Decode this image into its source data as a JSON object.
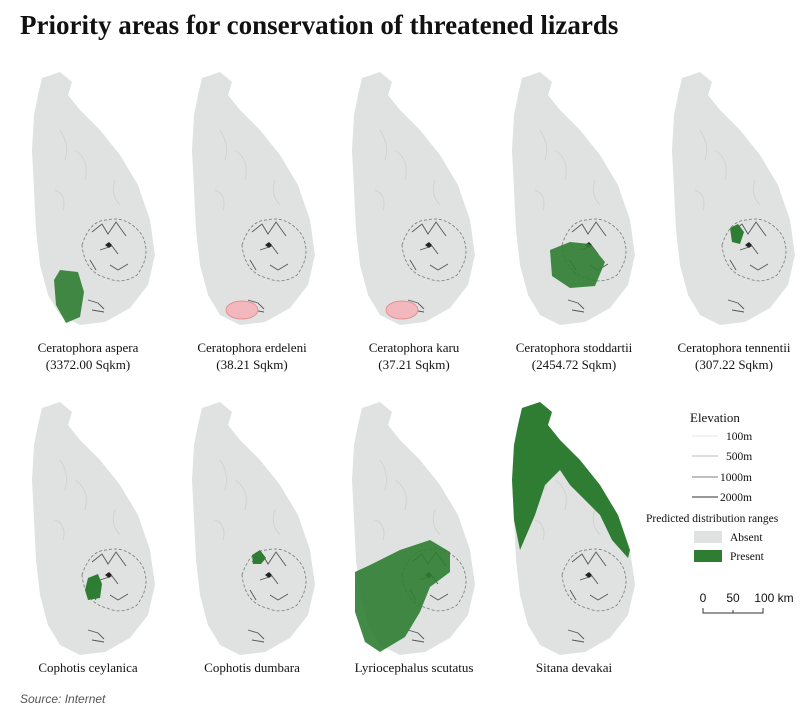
{
  "header": {
    "title": "Priority areas for conservation of threatened lizards"
  },
  "maps": [
    {
      "name": "Ceratophora aspera",
      "area": "(3372.00 Sqkm)"
    },
    {
      "name": "Ceratophora erdeleni",
      "area": "(38.21 Sqkm)"
    },
    {
      "name": "Ceratophora karu",
      "area": "(37.21 Sqkm)"
    },
    {
      "name": "Ceratophora stoddartii",
      "area": "(2454.72 Sqkm)"
    },
    {
      "name": "Ceratophora tennentii",
      "area": "(307.22 Sqkm)"
    },
    {
      "name": "Cophotis ceylanica"
    },
    {
      "name": "Cophotis dumbara"
    },
    {
      "name": "Lyriocephalus scutatus"
    },
    {
      "name": "Sitana devakai"
    }
  ],
  "legend": {
    "elevation_title": "Elevation",
    "elevation": [
      "100m",
      "500m",
      "1000m",
      "2000m"
    ],
    "ranges_title": "Predicted distribution ranges",
    "absent": "Absent",
    "present": "Present"
  },
  "scale": {
    "labels": [
      "0",
      "50",
      "100 km"
    ]
  },
  "source": "Source: Internet"
}
